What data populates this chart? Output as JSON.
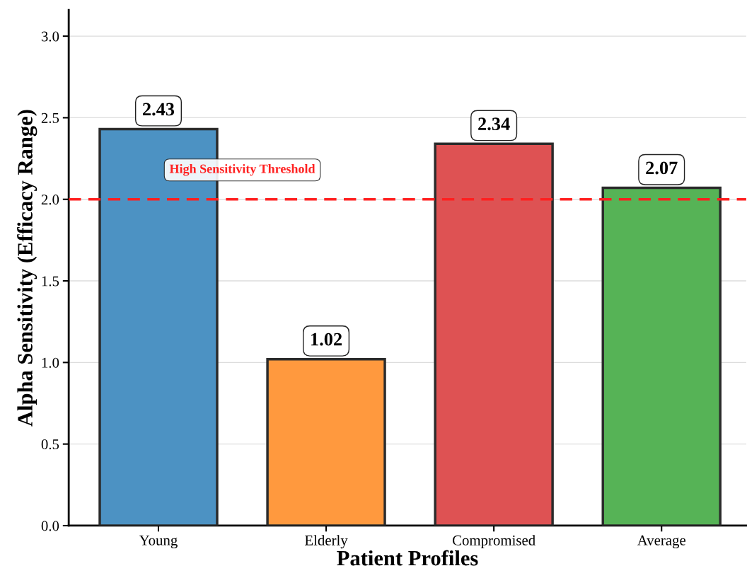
{
  "chart_data": {
    "type": "bar",
    "xlabel": "Patient Profiles",
    "ylabel": "Alpha Sensitivity (Efficacy Range)",
    "categories": [
      "Young",
      "Elderly",
      "Compromised",
      "Average"
    ],
    "values": [
      2.43,
      1.02,
      2.34,
      2.07
    ],
    "colors": [
      "#4c92c3",
      "#ff993e",
      "#de5253",
      "#56b356"
    ],
    "ylim": [
      0,
      3.16
    ],
    "yticks": [
      {
        "value": 0,
        "label": "0.0"
      },
      0.5,
      {
        "value": 1,
        "label": "1.0"
      },
      1.5,
      {
        "value": 2,
        "label": "2.0"
      },
      2.5,
      {
        "value": 3,
        "label": "3.0"
      }
    ],
    "ref_lines": [
      {
        "axis": "y",
        "value": 2.0,
        "label": "High Sensitivity Threshold",
        "color": "#ff2020",
        "line_style": "dashed"
      }
    ],
    "data_labels": true,
    "grid": "y",
    "legend": false
  }
}
